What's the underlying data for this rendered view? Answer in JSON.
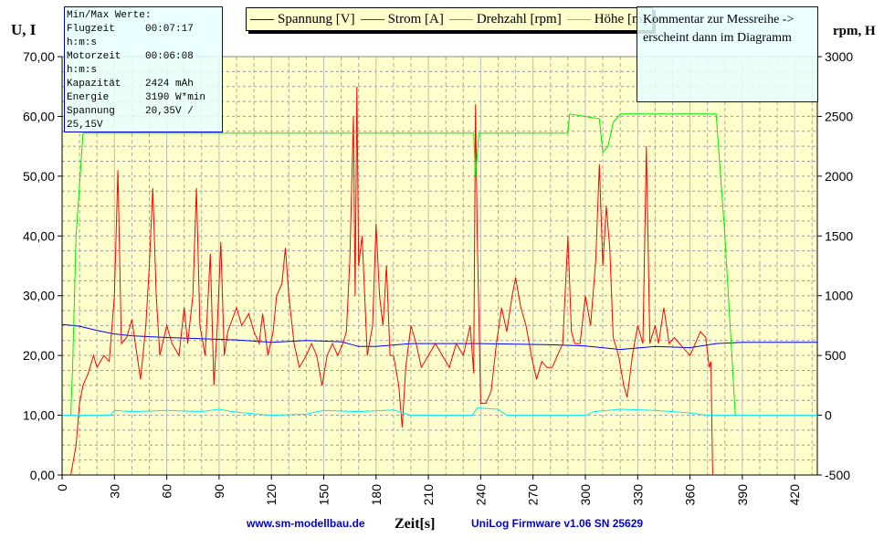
{
  "info_box": {
    "title": "Min/Max Werte:",
    "rows": [
      {
        "label": "Flugzeit",
        "value": "00:07:17"
      },
      {
        "label": "h:m:s",
        "value": ""
      },
      {
        "label": "Motorzeit",
        "value": "00:06:08"
      },
      {
        "label": "h:m:s",
        "value": ""
      },
      {
        "label": "Kapazität",
        "value": "2424 mAh"
      },
      {
        "label": "Energie",
        "value": "3190 W*min"
      },
      {
        "label": "Spannung",
        "value": "20,35V /"
      },
      {
        "label": "25,15V",
        "value": ""
      }
    ]
  },
  "comment": "Kommentar zur Messreihe -> erscheint dann im Diagramm",
  "footer": {
    "left": "www.sm-modellbau.de",
    "right": "UniLog Firmware v1.06 SN 25629"
  },
  "chart_data": {
    "type": "line",
    "xlabel": "Zeit[s]",
    "ylabel_left": "U, I",
    "ylabel_right": "rpm, H",
    "xlim": [
      0,
      433
    ],
    "ylim_left": [
      0,
      70
    ],
    "ylim_right": [
      -500,
      3000
    ],
    "xticks": [
      0,
      30,
      60,
      90,
      120,
      150,
      180,
      210,
      240,
      270,
      300,
      330,
      360,
      390,
      420
    ],
    "yticks_left": [
      "0,00",
      "10,00",
      "20,00",
      "30,00",
      "40,00",
      "50,00",
      "60,00",
      "70,00"
    ],
    "yticks_right": [
      "-500",
      "0",
      "500",
      "1000",
      "1500",
      "2000",
      "2500",
      "3000"
    ],
    "grid": true,
    "legend_placement": "top",
    "background": "#ffffcc",
    "series": [
      {
        "name": "Spannung [V]",
        "axis": "left",
        "color": "#0000ff",
        "points": [
          [
            0,
            25.2
          ],
          [
            10,
            24.9
          ],
          [
            20,
            24.2
          ],
          [
            30,
            23.6
          ],
          [
            40,
            23.3
          ],
          [
            60,
            23.0
          ],
          [
            80,
            22.8
          ],
          [
            100,
            22.6
          ],
          [
            120,
            22.2
          ],
          [
            140,
            22.5
          ],
          [
            160,
            22.3
          ],
          [
            170,
            21.5
          ],
          [
            180,
            21.5
          ],
          [
            200,
            22.0
          ],
          [
            240,
            22.0
          ],
          [
            280,
            21.8
          ],
          [
            300,
            21.6
          ],
          [
            320,
            21.0
          ],
          [
            340,
            21.5
          ],
          [
            360,
            21.3
          ],
          [
            375,
            22.0
          ],
          [
            390,
            22.2
          ],
          [
            433,
            22.2
          ]
        ]
      },
      {
        "name": "Strom [A]",
        "axis": "left",
        "color": "#ff0000",
        "points": [
          [
            5,
            0
          ],
          [
            8,
            5
          ],
          [
            10,
            12
          ],
          [
            12,
            15
          ],
          [
            15,
            17
          ],
          [
            18,
            20
          ],
          [
            20,
            18
          ],
          [
            24,
            20
          ],
          [
            27,
            19
          ],
          [
            30,
            30
          ],
          [
            32,
            51
          ],
          [
            34,
            22
          ],
          [
            37,
            23
          ],
          [
            40,
            26
          ],
          [
            42,
            22
          ],
          [
            45,
            16
          ],
          [
            48,
            25
          ],
          [
            50,
            35
          ],
          [
            52,
            48
          ],
          [
            54,
            30
          ],
          [
            56,
            20
          ],
          [
            60,
            25
          ],
          [
            63,
            22
          ],
          [
            67,
            20
          ],
          [
            70,
            28
          ],
          [
            72,
            22
          ],
          [
            75,
            30
          ],
          [
            77,
            48
          ],
          [
            79,
            25
          ],
          [
            82,
            20
          ],
          [
            85,
            37
          ],
          [
            87,
            15
          ],
          [
            89,
            25
          ],
          [
            91,
            39
          ],
          [
            93,
            20
          ],
          [
            95,
            24
          ],
          [
            100,
            28
          ],
          [
            103,
            25
          ],
          [
            107,
            27
          ],
          [
            110,
            24
          ],
          [
            113,
            22
          ],
          [
            115,
            27
          ],
          [
            118,
            20
          ],
          [
            121,
            24
          ],
          [
            123,
            30
          ],
          [
            126,
            32
          ],
          [
            128,
            38
          ],
          [
            130,
            30
          ],
          [
            133,
            22
          ],
          [
            136,
            18
          ],
          [
            140,
            20
          ],
          [
            143,
            22
          ],
          [
            146,
            20
          ],
          [
            149,
            15
          ],
          [
            152,
            20
          ],
          [
            155,
            22
          ],
          [
            158,
            20
          ],
          [
            161,
            22
          ],
          [
            163,
            24
          ],
          [
            165,
            36
          ],
          [
            167,
            60
          ],
          [
            168,
            30
          ],
          [
            169,
            65
          ],
          [
            170,
            35
          ],
          [
            172,
            40
          ],
          [
            175,
            20
          ],
          [
            178,
            25
          ],
          [
            180,
            42
          ],
          [
            182,
            30
          ],
          [
            184,
            25
          ],
          [
            186,
            35
          ],
          [
            188,
            20
          ],
          [
            190,
            20
          ],
          [
            193,
            15
          ],
          [
            195,
            8
          ],
          [
            197,
            18
          ],
          [
            200,
            25
          ],
          [
            203,
            22
          ],
          [
            206,
            18
          ],
          [
            210,
            20
          ],
          [
            214,
            22
          ],
          [
            218,
            20
          ],
          [
            222,
            18
          ],
          [
            226,
            22
          ],
          [
            230,
            20
          ],
          [
            234,
            25
          ],
          [
            236,
            17
          ],
          [
            237,
            62
          ],
          [
            238,
            40
          ],
          [
            240,
            12
          ],
          [
            243,
            12
          ],
          [
            246,
            14
          ],
          [
            249,
            22
          ],
          [
            252,
            28
          ],
          [
            255,
            24
          ],
          [
            258,
            30
          ],
          [
            260,
            33
          ],
          [
            263,
            28
          ],
          [
            266,
            25
          ],
          [
            269,
            20
          ],
          [
            272,
            16
          ],
          [
            275,
            19
          ],
          [
            278,
            18
          ],
          [
            281,
            18
          ],
          [
            284,
            20
          ],
          [
            287,
            22
          ],
          [
            290,
            40
          ],
          [
            292,
            24
          ],
          [
            294,
            22
          ],
          [
            297,
            22
          ],
          [
            300,
            30
          ],
          [
            303,
            25
          ],
          [
            306,
            36
          ],
          [
            308,
            52
          ],
          [
            310,
            35
          ],
          [
            312,
            45
          ],
          [
            314,
            38
          ],
          [
            316,
            23
          ],
          [
            319,
            20
          ],
          [
            322,
            15
          ],
          [
            324,
            13
          ],
          [
            327,
            20
          ],
          [
            330,
            25
          ],
          [
            333,
            22
          ],
          [
            335,
            55
          ],
          [
            337,
            22
          ],
          [
            340,
            25
          ],
          [
            342,
            22
          ],
          [
            345,
            28
          ],
          [
            348,
            22
          ],
          [
            351,
            23
          ],
          [
            354,
            22
          ],
          [
            357,
            21
          ],
          [
            360,
            20
          ],
          [
            363,
            22
          ],
          [
            366,
            24
          ],
          [
            369,
            23
          ],
          [
            371,
            18
          ],
          [
            372,
            19
          ],
          [
            373,
            0
          ]
        ]
      },
      {
        "name": "Drehzahl [rpm]",
        "axis": "right",
        "color": "#00ee00",
        "points": [
          [
            5,
            0
          ],
          [
            6,
            400
          ],
          [
            8,
            1500
          ],
          [
            12,
            2360
          ],
          [
            236,
            2360
          ],
          [
            237,
            2000
          ],
          [
            239,
            2360
          ],
          [
            290,
            2360
          ],
          [
            291,
            2520
          ],
          [
            308,
            2480
          ],
          [
            310,
            2200
          ],
          [
            313,
            2250
          ],
          [
            316,
            2450
          ],
          [
            320,
            2520
          ],
          [
            375,
            2520
          ],
          [
            380,
            1500
          ],
          [
            386,
            0
          ]
        ]
      },
      {
        "name": "Höhe [m]",
        "axis": "right",
        "color": "#00eeee",
        "points": [
          [
            0,
            0
          ],
          [
            28,
            0
          ],
          [
            30,
            40
          ],
          [
            40,
            30
          ],
          [
            60,
            40
          ],
          [
            80,
            30
          ],
          [
            90,
            50
          ],
          [
            100,
            25
          ],
          [
            120,
            0
          ],
          [
            140,
            10
          ],
          [
            150,
            40
          ],
          [
            170,
            30
          ],
          [
            190,
            45
          ],
          [
            200,
            0
          ],
          [
            235,
            0
          ],
          [
            238,
            60
          ],
          [
            250,
            50
          ],
          [
            255,
            0
          ],
          [
            300,
            0
          ],
          [
            305,
            30
          ],
          [
            320,
            50
          ],
          [
            340,
            40
          ],
          [
            360,
            20
          ],
          [
            370,
            0
          ],
          [
            433,
            0
          ]
        ]
      }
    ]
  }
}
